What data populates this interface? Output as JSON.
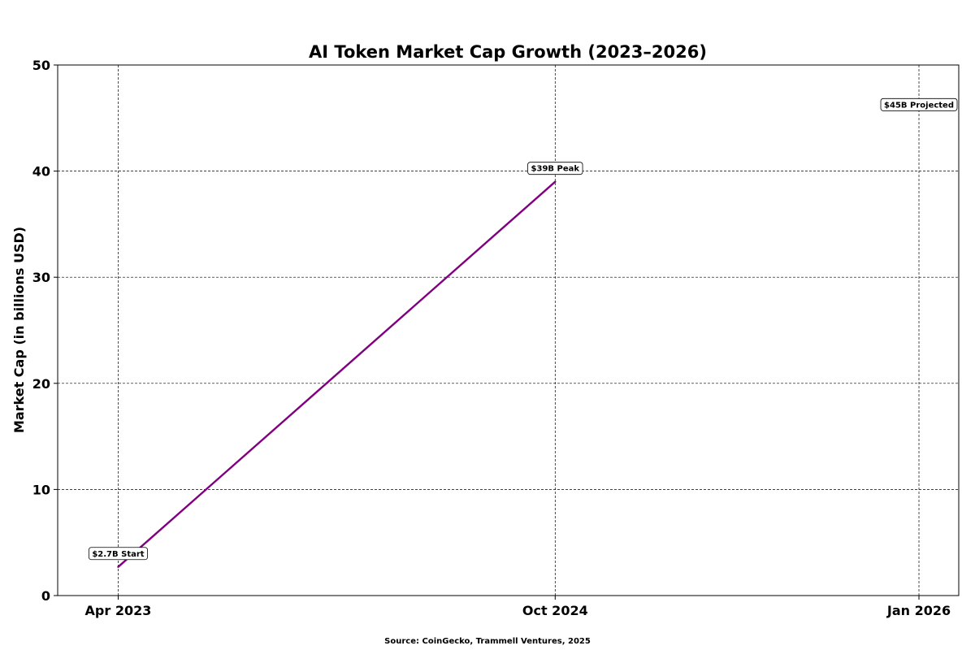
{
  "chart_data": {
    "type": "line",
    "title": "AI Token Market Cap Growth (2023–2026)",
    "xlabel": "",
    "ylabel": "Market Cap (in billions USD)",
    "x_ticks": [
      {
        "date": "2023-04-01",
        "label": "Apr 2023"
      },
      {
        "date": "2024-10-01",
        "label": "Oct 2024"
      },
      {
        "date": "2026-01-01",
        "label": "Jan 2026"
      }
    ],
    "xlim": [
      "2023-01-15",
      "2026-02-20"
    ],
    "ylim": [
      0,
      50
    ],
    "y_ticks": [
      0,
      10,
      20,
      30,
      40,
      50
    ],
    "grid": true,
    "series": [
      {
        "color": "#800080",
        "points": [
          {
            "x": "2023-04-01",
            "y": 2.7
          },
          {
            "x": "2024-10-01",
            "y": 39
          }
        ]
      }
    ],
    "annotations": [
      {
        "text": "$2.7B Start",
        "x": "2023-04-01",
        "y": 4
      },
      {
        "text": "$39B Peak",
        "x": "2024-10-01",
        "y": 40.3
      },
      {
        "text": "$45B Projected",
        "x": "2026-01-01",
        "y": 46.3
      }
    ],
    "source": "Source: CoinGecko, Trammell Ventures, 2025"
  }
}
